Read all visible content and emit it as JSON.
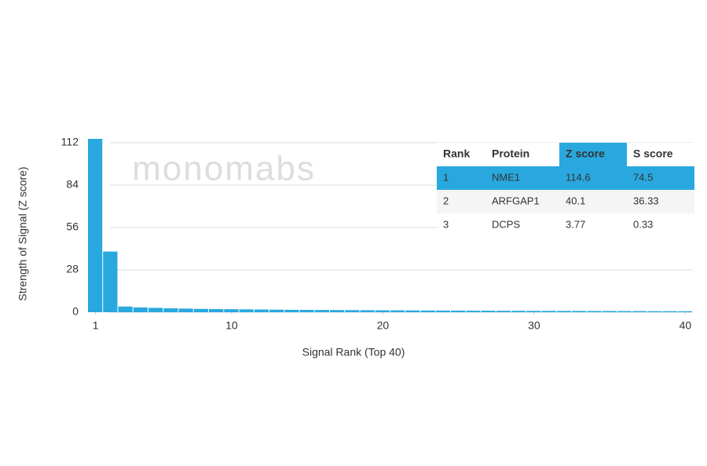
{
  "chart_data": {
    "type": "bar",
    "ylabel": "Strength of Signal (Z score)",
    "xlabel": "Signal Rank (Top 40)",
    "watermark": "monomabs",
    "color": "#29a8df",
    "x": [
      1,
      2,
      3,
      4,
      5,
      6,
      7,
      8,
      9,
      10,
      11,
      12,
      13,
      14,
      15,
      16,
      17,
      18,
      19,
      20,
      21,
      22,
      23,
      24,
      25,
      26,
      27,
      28,
      29,
      30,
      31,
      32,
      33,
      34,
      35,
      36,
      37,
      38,
      39,
      40
    ],
    "values": [
      114.6,
      40.1,
      3.77,
      3.2,
      2.9,
      2.6,
      2.4,
      2.2,
      2.1,
      2.0,
      1.9,
      1.8,
      1.7,
      1.6,
      1.55,
      1.5,
      1.45,
      1.4,
      1.35,
      1.3,
      1.25,
      1.2,
      1.15,
      1.1,
      1.05,
      1.0,
      1.0,
      0.95,
      0.95,
      0.9,
      0.9,
      0.85,
      0.85,
      0.8,
      0.8,
      0.75,
      0.75,
      0.7,
      0.7,
      0.65
    ],
    "xlim": [
      0.5,
      40.5
    ],
    "xticks": [
      1,
      10,
      20,
      30,
      40
    ],
    "ylim": [
      0,
      112
    ],
    "yticks": [
      0,
      28,
      56,
      84,
      112
    ],
    "grid": true
  },
  "table": {
    "columns": [
      "Rank",
      "Protein",
      "Z score",
      "S score"
    ],
    "highlight_color": "#29a8df",
    "rows": [
      [
        "1",
        "NME1",
        "114.6",
        "74.5"
      ],
      [
        "2",
        "ARFGAP1",
        "40.1",
        "36.33"
      ],
      [
        "3",
        "DCPS",
        "3.77",
        "0.33"
      ]
    ]
  }
}
